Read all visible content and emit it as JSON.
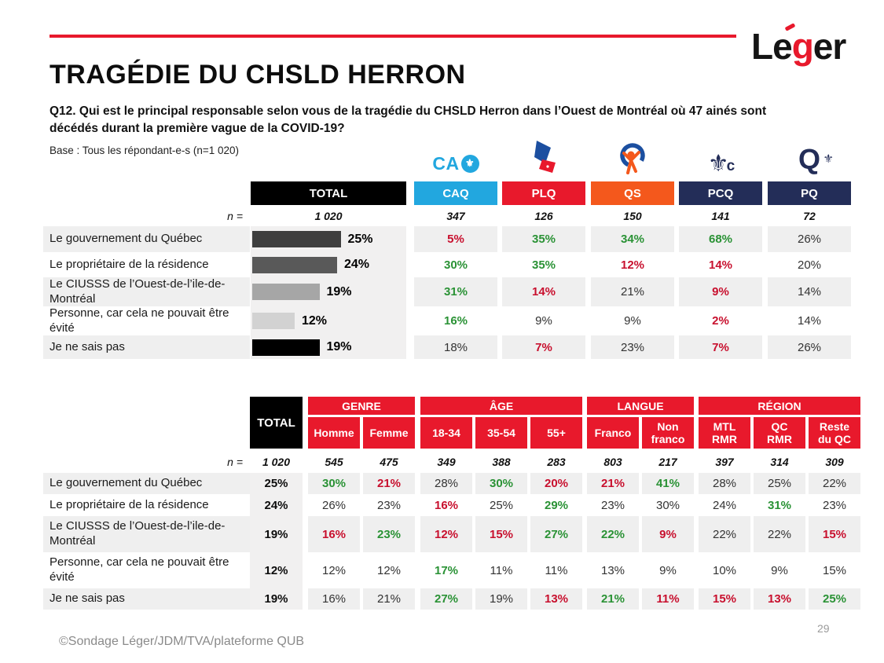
{
  "header": {
    "title": "TRAGÉDIE DU CHSLD HERRON",
    "question": "Q12. Qui est le principal responsable selon vous de la tragédie du CHSLD Herron dans l’Ouest de Montréal où 47 ainés sont décédés durant la première vague de la COVID-19?",
    "base": "Base : Tous les répondant-e-s (n=1 020)"
  },
  "logo": {
    "le": "Le",
    "g": "g",
    "er": "er",
    "full": "Léger"
  },
  "party_logos": {
    "caq_prefix": "CA",
    "fleur": "⚜",
    "pcq_letter": "c",
    "pq_letter": "Q"
  },
  "colors": {
    "accent_red": "#E8192C",
    "header_red": "#E8192C",
    "positive_green": "#2A9235",
    "negative_red": "#C8102E",
    "caq_blue": "#22A7DF",
    "plq_red": "#E8192C",
    "qs_orange": "#F4581C",
    "navy": "#232D58",
    "stripe_gray": "#EFEFEF",
    "bar_strip_gray": "#F1F0F0"
  },
  "parties": [
    {
      "code": "CAQ",
      "color": "#22A7DF",
      "n": "347"
    },
    {
      "code": "PLQ",
      "color": "#E8192C",
      "n": "126"
    },
    {
      "code": "QS",
      "color": "#F4581C",
      "n": "150"
    },
    {
      "code": "PCQ",
      "color": "#232D58",
      "n": "141"
    },
    {
      "code": "PQ",
      "color": "#232D58",
      "n": "72"
    }
  ],
  "table1": {
    "total_label": "TOTAL",
    "n_label": "n =",
    "n_total": "1 020",
    "bar_colors": [
      "#3F3F3F",
      "#595959",
      "#A6A6A6",
      "#D2D2D2",
      "#000000"
    ],
    "rows": [
      {
        "label": "Le gouvernement du Québec",
        "total": 25,
        "cells": [
          {
            "v": "5%",
            "c": "neg"
          },
          {
            "v": "35%",
            "c": "pos"
          },
          {
            "v": "34%",
            "c": "pos"
          },
          {
            "v": "68%",
            "c": "pos"
          },
          {
            "v": "26%",
            "c": "std"
          }
        ]
      },
      {
        "label": "Le propriétaire de la résidence",
        "total": 24,
        "cells": [
          {
            "v": "30%",
            "c": "pos"
          },
          {
            "v": "35%",
            "c": "pos"
          },
          {
            "v": "12%",
            "c": "neg"
          },
          {
            "v": "14%",
            "c": "neg"
          },
          {
            "v": "20%",
            "c": "std"
          }
        ]
      },
      {
        "label": "Le CIUSSS de l’Ouest-de-l’ile-de-Montréal",
        "total": 19,
        "cells": [
          {
            "v": "31%",
            "c": "pos"
          },
          {
            "v": "14%",
            "c": "neg"
          },
          {
            "v": "21%",
            "c": "std"
          },
          {
            "v": "9%",
            "c": "neg"
          },
          {
            "v": "14%",
            "c": "std"
          }
        ]
      },
      {
        "label": "Personne, car cela ne pouvait être évité",
        "total": 12,
        "cells": [
          {
            "v": "16%",
            "c": "pos"
          },
          {
            "v": "9%",
            "c": "std"
          },
          {
            "v": "9%",
            "c": "std"
          },
          {
            "v": "2%",
            "c": "neg"
          },
          {
            "v": "14%",
            "c": "std"
          }
        ]
      },
      {
        "label": "Je ne sais pas",
        "total": 19,
        "cells": [
          {
            "v": "18%",
            "c": "std"
          },
          {
            "v": "7%",
            "c": "neg"
          },
          {
            "v": "23%",
            "c": "std"
          },
          {
            "v": "7%",
            "c": "neg"
          },
          {
            "v": "26%",
            "c": "std"
          }
        ]
      }
    ]
  },
  "table2": {
    "total_label": "TOTAL",
    "n_label": "n =",
    "groups": [
      {
        "label": "GENRE",
        "cols": [
          "Homme",
          "Femme"
        ]
      },
      {
        "label": "ÂGE",
        "cols": [
          "18-34",
          "35-54",
          "55+"
        ]
      },
      {
        "label": "LANGUE",
        "cols": [
          "Franco",
          "Non\nfranco"
        ]
      },
      {
        "label": "RÉGION",
        "cols": [
          "MTL\nRMR",
          "QC\nRMR",
          "Reste\ndu QC"
        ]
      }
    ],
    "n_values": [
      "1 020",
      "545",
      "475",
      "349",
      "388",
      "283",
      "803",
      "217",
      "397",
      "314",
      "309"
    ],
    "rows": [
      {
        "label": "Le gouvernement du Québec",
        "cells": [
          {
            "v": "25%",
            "c": "tot"
          },
          {
            "v": "30%",
            "c": "pos"
          },
          {
            "v": "21%",
            "c": "neg"
          },
          {
            "v": "28%",
            "c": "std"
          },
          {
            "v": "30%",
            "c": "pos"
          },
          {
            "v": "20%",
            "c": "neg"
          },
          {
            "v": "21%",
            "c": "neg"
          },
          {
            "v": "41%",
            "c": "pos"
          },
          {
            "v": "28%",
            "c": "std"
          },
          {
            "v": "25%",
            "c": "std"
          },
          {
            "v": "22%",
            "c": "std"
          }
        ]
      },
      {
        "label": "Le propriétaire de la résidence",
        "cells": [
          {
            "v": "24%",
            "c": "tot"
          },
          {
            "v": "26%",
            "c": "std"
          },
          {
            "v": "23%",
            "c": "std"
          },
          {
            "v": "16%",
            "c": "neg"
          },
          {
            "v": "25%",
            "c": "std"
          },
          {
            "v": "29%",
            "c": "pos"
          },
          {
            "v": "23%",
            "c": "std"
          },
          {
            "v": "30%",
            "c": "std"
          },
          {
            "v": "24%",
            "c": "std"
          },
          {
            "v": "31%",
            "c": "pos"
          },
          {
            "v": "23%",
            "c": "std"
          }
        ]
      },
      {
        "label": "Le CIUSSS de l’Ouest-de-l’ile-de-Montréal",
        "cells": [
          {
            "v": "19%",
            "c": "tot"
          },
          {
            "v": "16%",
            "c": "neg"
          },
          {
            "v": "23%",
            "c": "pos"
          },
          {
            "v": "12%",
            "c": "neg"
          },
          {
            "v": "15%",
            "c": "neg"
          },
          {
            "v": "27%",
            "c": "pos"
          },
          {
            "v": "22%",
            "c": "pos"
          },
          {
            "v": "9%",
            "c": "neg"
          },
          {
            "v": "22%",
            "c": "std"
          },
          {
            "v": "22%",
            "c": "std"
          },
          {
            "v": "15%",
            "c": "neg"
          }
        ]
      },
      {
        "label": "Personne, car cela ne pouvait être évité",
        "cells": [
          {
            "v": "12%",
            "c": "tot"
          },
          {
            "v": "12%",
            "c": "std"
          },
          {
            "v": "12%",
            "c": "std"
          },
          {
            "v": "17%",
            "c": "pos"
          },
          {
            "v": "11%",
            "c": "std"
          },
          {
            "v": "11%",
            "c": "std"
          },
          {
            "v": "13%",
            "c": "std"
          },
          {
            "v": "9%",
            "c": "std"
          },
          {
            "v": "10%",
            "c": "std"
          },
          {
            "v": "9%",
            "c": "std"
          },
          {
            "v": "15%",
            "c": "std"
          }
        ]
      },
      {
        "label": "Je ne sais pas",
        "cells": [
          {
            "v": "19%",
            "c": "tot"
          },
          {
            "v": "16%",
            "c": "std"
          },
          {
            "v": "21%",
            "c": "std"
          },
          {
            "v": "27%",
            "c": "pos"
          },
          {
            "v": "19%",
            "c": "std"
          },
          {
            "v": "13%",
            "c": "neg"
          },
          {
            "v": "21%",
            "c": "pos"
          },
          {
            "v": "11%",
            "c": "neg"
          },
          {
            "v": "15%",
            "c": "neg"
          },
          {
            "v": "13%",
            "c": "neg"
          },
          {
            "v": "25%",
            "c": "pos"
          }
        ]
      }
    ]
  },
  "chart_data": {
    "type": "bar",
    "title": "Q12 — Principal responsable de la tragédie du CHSLD Herron (TOTAL, n=1 020)",
    "categories": [
      "Le gouvernement du Québec",
      "Le propriétaire de la résidence",
      "Le CIUSSS de l’Ouest-de-l’ile-de-Montréal",
      "Personne, car cela ne pouvait être évité",
      "Je ne sais pas"
    ],
    "values": [
      25,
      24,
      19,
      12,
      19
    ],
    "xlabel": "",
    "ylabel": "",
    "xlim": [
      0,
      100
    ],
    "grid": false,
    "legend": false
  },
  "footer": {
    "credit": "©Sondage Léger/JDM/TVA/plateforme QUB",
    "page": "29"
  }
}
